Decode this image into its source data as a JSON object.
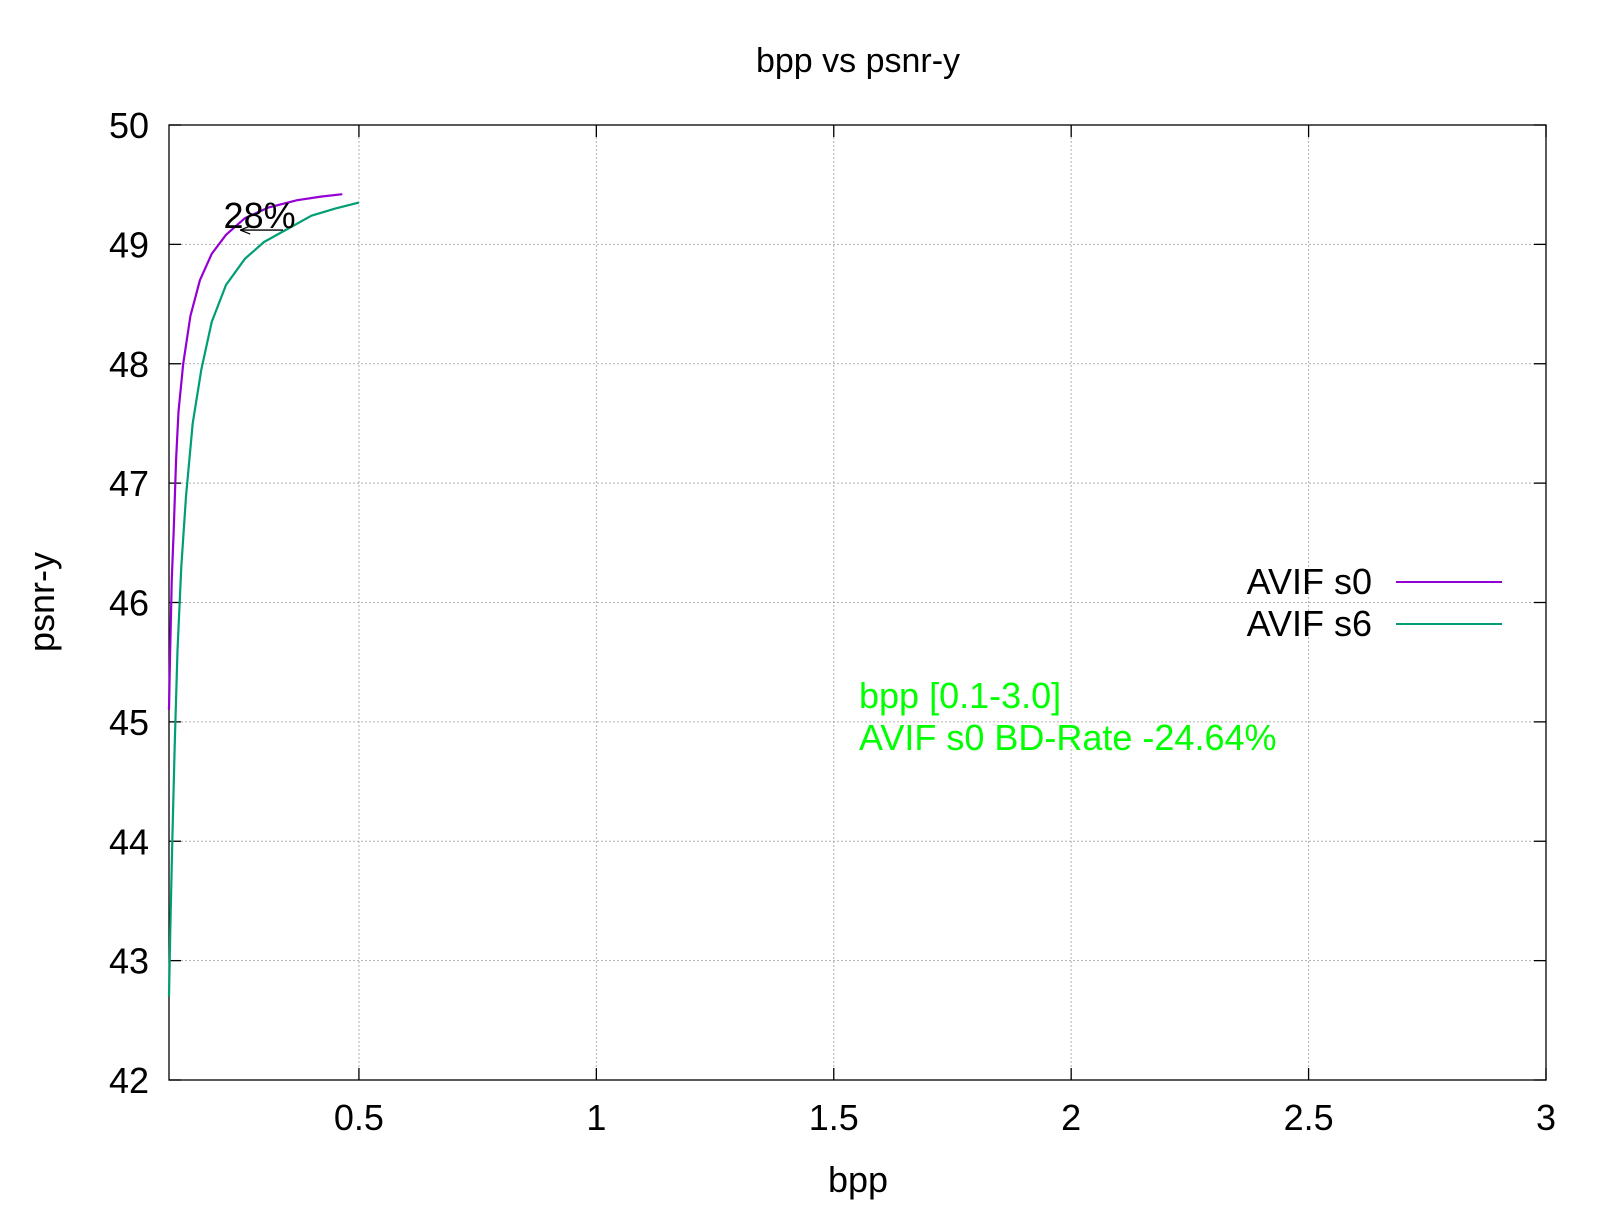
{
  "chart_data": {
    "type": "line",
    "title": "bpp vs psnr-y",
    "xlabel": "bpp",
    "ylabel": "psnr-y",
    "xlim": [
      0.1,
      3.0
    ],
    "ylim": [
      42,
      50
    ],
    "grid": true,
    "legend_position": "right",
    "x_ticks": [
      0.5,
      1,
      1.5,
      2,
      2.5,
      3
    ],
    "x_tick_labels": [
      "0.5",
      "1",
      "1.5",
      "2",
      "2.5",
      "3"
    ],
    "y_ticks": [
      42,
      43,
      44,
      45,
      46,
      47,
      48,
      49,
      50
    ],
    "y_tick_labels": [
      "42",
      "43",
      "44",
      "45",
      "46",
      "47",
      "48",
      "49",
      "50"
    ],
    "series": [
      {
        "name": "AVIF s0",
        "color": "#9400d3",
        "points": [
          {
            "x": 0.1,
            "y": 45.1
          },
          {
            "x": 0.102,
            "y": 45.5
          },
          {
            "x": 0.106,
            "y": 46.2
          },
          {
            "x": 0.11,
            "y": 46.6
          },
          {
            "x": 0.115,
            "y": 47.2
          },
          {
            "x": 0.12,
            "y": 47.6
          },
          {
            "x": 0.13,
            "y": 48.0
          },
          {
            "x": 0.145,
            "y": 48.4
          },
          {
            "x": 0.165,
            "y": 48.7
          },
          {
            "x": 0.19,
            "y": 48.92
          },
          {
            "x": 0.22,
            "y": 49.08
          },
          {
            "x": 0.26,
            "y": 49.22
          },
          {
            "x": 0.31,
            "y": 49.31
          },
          {
            "x": 0.37,
            "y": 49.37
          },
          {
            "x": 0.42,
            "y": 49.4
          },
          {
            "x": 0.465,
            "y": 49.42
          }
        ]
      },
      {
        "name": "AVIF s6",
        "color": "#009e73",
        "points": [
          {
            "x": 0.1,
            "y": 42.7
          },
          {
            "x": 0.103,
            "y": 43.3
          },
          {
            "x": 0.107,
            "y": 44.0
          },
          {
            "x": 0.112,
            "y": 44.8
          },
          {
            "x": 0.118,
            "y": 45.6
          },
          {
            "x": 0.126,
            "y": 46.3
          },
          {
            "x": 0.136,
            "y": 46.9
          },
          {
            "x": 0.15,
            "y": 47.5
          },
          {
            "x": 0.168,
            "y": 47.95
          },
          {
            "x": 0.19,
            "y": 48.35
          },
          {
            "x": 0.22,
            "y": 48.66
          },
          {
            "x": 0.26,
            "y": 48.88
          },
          {
            "x": 0.3,
            "y": 49.02
          },
          {
            "x": 0.35,
            "y": 49.13
          },
          {
            "x": 0.4,
            "y": 49.24
          },
          {
            "x": 0.45,
            "y": 49.3
          },
          {
            "x": 0.5,
            "y": 49.35
          }
        ]
      }
    ],
    "annotations": {
      "arrow_label": "28%",
      "arrow_from": {
        "x": 0.34,
        "y": 49.12
      },
      "arrow_to": {
        "x": 0.25,
        "y": 49.12
      },
      "bd_rate_lines": [
        "bpp [0.1-3.0]",
        "AVIF s0 BD-Rate -24.64%"
      ],
      "bd_rate_color": "#00ff00"
    }
  }
}
